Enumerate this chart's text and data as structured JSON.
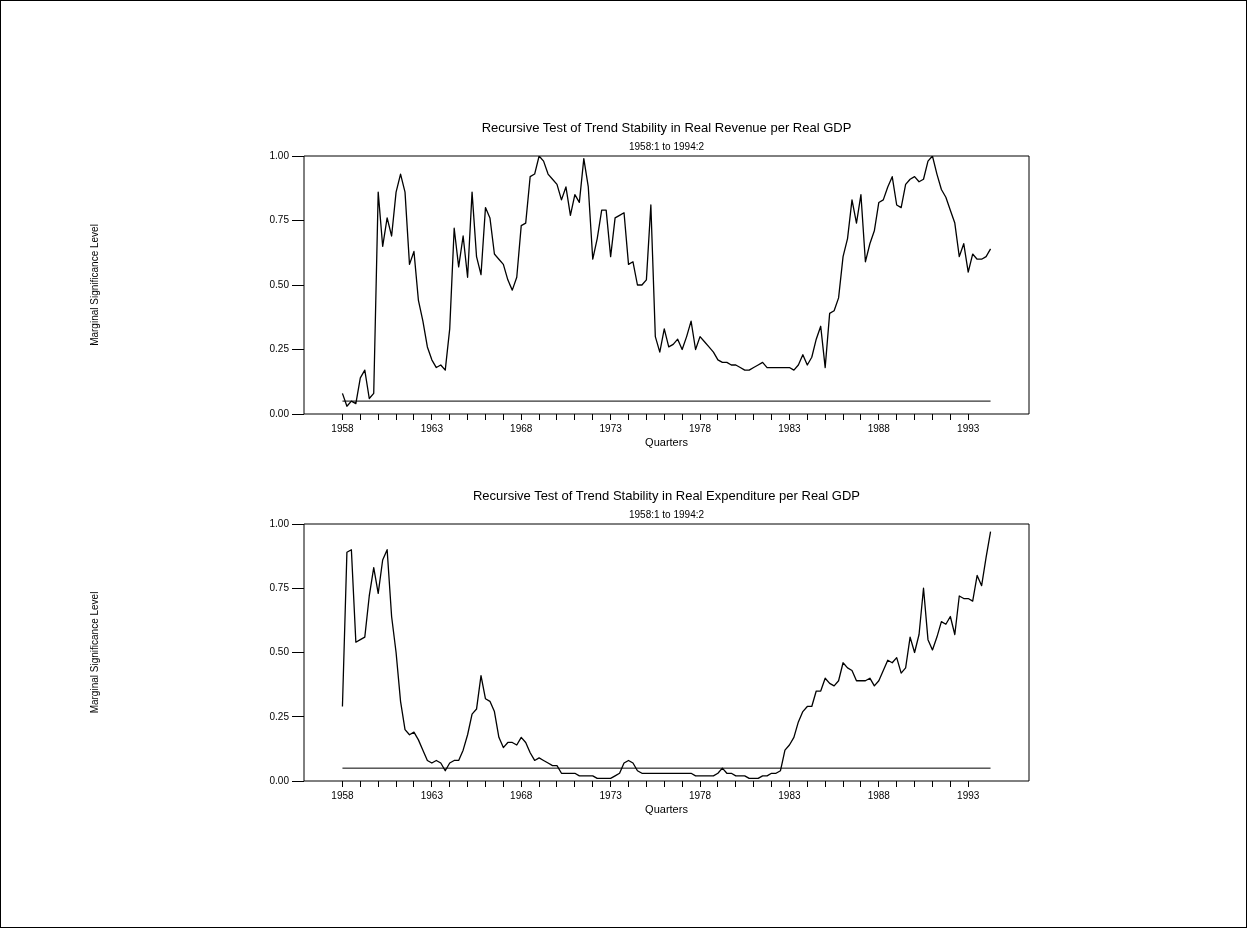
{
  "chart_data": [
    {
      "type": "line",
      "title": "Recursive Test of Trend Stability in Real Revenue per Real GDP",
      "subtitle": "1958:1 to 1994:2",
      "xlabel": "Quarters",
      "ylabel": "Marginal Significance Level",
      "color": "#000000",
      "marker": "none",
      "line_style": "solid",
      "grid": false,
      "x": [
        1958,
        1958.25,
        1958.5,
        1958.75,
        1959,
        1959.25,
        1959.5,
        1959.75,
        1960,
        1960.25,
        1960.5,
        1960.75,
        1961,
        1961.25,
        1961.5,
        1961.75,
        1962,
        1962.25,
        1962.5,
        1962.75,
        1963,
        1963.25,
        1963.5,
        1963.75,
        1964,
        1964.25,
        1964.5,
        1964.75,
        1965,
        1965.25,
        1965.5,
        1965.75,
        1966,
        1966.25,
        1966.5,
        1966.75,
        1967,
        1967.25,
        1967.5,
        1967.75,
        1968,
        1968.25,
        1968.5,
        1968.75,
        1969,
        1969.25,
        1969.5,
        1969.75,
        1970,
        1970.25,
        1970.5,
        1970.75,
        1971,
        1971.25,
        1971.5,
        1971.75,
        1972,
        1972.25,
        1972.5,
        1972.75,
        1973,
        1973.25,
        1973.5,
        1973.75,
        1974,
        1974.25,
        1974.5,
        1974.75,
        1975,
        1975.25,
        1975.5,
        1975.75,
        1976,
        1976.25,
        1976.5,
        1976.75,
        1977,
        1977.25,
        1977.5,
        1977.75,
        1978,
        1978.25,
        1978.5,
        1978.75,
        1979,
        1979.25,
        1979.5,
        1979.75,
        1980,
        1980.25,
        1980.5,
        1980.75,
        1981,
        1981.25,
        1981.5,
        1981.75,
        1982,
        1982.25,
        1982.5,
        1982.75,
        1983,
        1983.25,
        1983.5,
        1983.75,
        1984,
        1984.25,
        1984.5,
        1984.75,
        1985,
        1985.25,
        1985.5,
        1985.75,
        1986,
        1986.25,
        1986.5,
        1986.75,
        1987,
        1987.25,
        1987.5,
        1987.75,
        1988,
        1988.25,
        1988.5,
        1988.75,
        1989,
        1989.25,
        1989.5,
        1989.75,
        1990,
        1990.25,
        1990.5,
        1990.75,
        1991,
        1991.25,
        1991.5,
        1991.75,
        1992,
        1992.25,
        1992.5,
        1992.75,
        1993,
        1993.25,
        1993.5,
        1993.75,
        1994,
        1994.25
      ],
      "values": [
        0.08,
        0.03,
        0.05,
        0.04,
        0.14,
        0.17,
        0.06,
        0.08,
        0.86,
        0.65,
        0.76,
        0.69,
        0.86,
        0.93,
        0.86,
        0.58,
        0.63,
        0.44,
        0.36,
        0.26,
        0.21,
        0.18,
        0.19,
        0.17,
        0.33,
        0.72,
        0.57,
        0.69,
        0.53,
        0.86,
        0.61,
        0.54,
        0.8,
        0.76,
        0.62,
        0.6,
        0.58,
        0.52,
        0.48,
        0.53,
        0.73,
        0.74,
        0.92,
        0.93,
        1.0,
        0.98,
        0.93,
        0.91,
        0.89,
        0.83,
        0.88,
        0.77,
        0.85,
        0.82,
        0.99,
        0.88,
        0.6,
        0.68,
        0.79,
        0.79,
        0.61,
        0.76,
        0.77,
        0.78,
        0.58,
        0.59,
        0.5,
        0.5,
        0.52,
        0.81,
        0.3,
        0.24,
        0.33,
        0.26,
        0.27,
        0.29,
        0.25,
        0.3,
        0.36,
        0.25,
        0.3,
        0.28,
        0.26,
        0.24,
        0.21,
        0.2,
        0.2,
        0.19,
        0.19,
        0.18,
        0.17,
        0.17,
        0.18,
        0.19,
        0.2,
        0.18,
        0.18,
        0.18,
        0.18,
        0.18,
        0.18,
        0.17,
        0.19,
        0.23,
        0.19,
        0.22,
        0.29,
        0.34,
        0.18,
        0.39,
        0.4,
        0.45,
        0.61,
        0.68,
        0.83,
        0.74,
        0.85,
        0.59,
        0.66,
        0.71,
        0.82,
        0.83,
        0.88,
        0.92,
        0.81,
        0.8,
        0.89,
        0.91,
        0.92,
        0.9,
        0.91,
        0.98,
        1.0,
        0.93,
        0.87,
        0.84,
        0.79,
        0.74,
        0.61,
        0.66,
        0.55,
        0.62,
        0.6,
        0.6,
        0.61,
        0.64
      ],
      "xlim": [
        1955.85,
        1996.4
      ],
      "xticks": [
        {
          "value": 1958,
          "label": "1958"
        },
        {
          "value": 1959,
          "label": null
        },
        {
          "value": 1960,
          "label": null
        },
        {
          "value": 1961,
          "label": null
        },
        {
          "value": 1962,
          "label": null
        },
        {
          "value": 1963,
          "label": "1963"
        },
        {
          "value": 1964,
          "label": null
        },
        {
          "value": 1965,
          "label": null
        },
        {
          "value": 1966,
          "label": null
        },
        {
          "value": 1967,
          "label": null
        },
        {
          "value": 1968,
          "label": "1968"
        },
        {
          "value": 1969,
          "label": null
        },
        {
          "value": 1970,
          "label": null
        },
        {
          "value": 1971,
          "label": null
        },
        {
          "value": 1972,
          "label": null
        },
        {
          "value": 1973,
          "label": "1973"
        },
        {
          "value": 1974,
          "label": null
        },
        {
          "value": 1975,
          "label": null
        },
        {
          "value": 1976,
          "label": null
        },
        {
          "value": 1977,
          "label": null
        },
        {
          "value": 1978,
          "label": "1978"
        },
        {
          "value": 1979,
          "label": null
        },
        {
          "value": 1980,
          "label": null
        },
        {
          "value": 1981,
          "label": null
        },
        {
          "value": 1982,
          "label": null
        },
        {
          "value": 1983,
          "label": "1983"
        },
        {
          "value": 1984,
          "label": null
        },
        {
          "value": 1985,
          "label": null
        },
        {
          "value": 1986,
          "label": null
        },
        {
          "value": 1987,
          "label": null
        },
        {
          "value": 1988,
          "label": "1988"
        },
        {
          "value": 1989,
          "label": null
        },
        {
          "value": 1990,
          "label": null
        },
        {
          "value": 1991,
          "label": null
        },
        {
          "value": 1992,
          "label": null
        },
        {
          "value": 1993,
          "label": "1993"
        }
      ],
      "ylim": [
        0,
        1
      ],
      "yticks": [
        {
          "value": 0,
          "label": "0.00"
        },
        {
          "value": 0.25,
          "label": "0.25"
        },
        {
          "value": 0.5,
          "label": "0.50"
        },
        {
          "value": 0.75,
          "label": "0.75"
        },
        {
          "value": 1,
          "label": "1.00"
        }
      ],
      "ref_lines": [
        {
          "axis": "y",
          "value": 0.05,
          "color": "#000000"
        }
      ]
    },
    {
      "type": "line",
      "title": "Recursive Test of Trend Stability in Real Expenditure per Real GDP",
      "subtitle": "1958:1 to 1994:2",
      "xlabel": "Quarters",
      "ylabel": "Marginal Significance Level",
      "color": "#000000",
      "marker": "none",
      "line_style": "solid",
      "grid": false,
      "x": [
        1958,
        1958.25,
        1958.5,
        1958.75,
        1959,
        1959.25,
        1959.5,
        1959.75,
        1960,
        1960.25,
        1960.5,
        1960.75,
        1961,
        1961.25,
        1961.5,
        1961.75,
        1962,
        1962.25,
        1962.5,
        1962.75,
        1963,
        1963.25,
        1963.5,
        1963.75,
        1964,
        1964.25,
        1964.5,
        1964.75,
        1965,
        1965.25,
        1965.5,
        1965.75,
        1966,
        1966.25,
        1966.5,
        1966.75,
        1967,
        1967.25,
        1967.5,
        1967.75,
        1968,
        1968.25,
        1968.5,
        1968.75,
        1969,
        1969.25,
        1969.5,
        1969.75,
        1970,
        1970.25,
        1970.5,
        1970.75,
        1971,
        1971.25,
        1971.5,
        1971.75,
        1972,
        1972.25,
        1972.5,
        1972.75,
        1973,
        1973.25,
        1973.5,
        1973.75,
        1974,
        1974.25,
        1974.5,
        1974.75,
        1975,
        1975.25,
        1975.5,
        1975.75,
        1976,
        1976.25,
        1976.5,
        1976.75,
        1977,
        1977.25,
        1977.5,
        1977.75,
        1978,
        1978.25,
        1978.5,
        1978.75,
        1979,
        1979.25,
        1979.5,
        1979.75,
        1980,
        1980.25,
        1980.5,
        1980.75,
        1981,
        1981.25,
        1981.5,
        1981.75,
        1982,
        1982.25,
        1982.5,
        1982.75,
        1983,
        1983.25,
        1983.5,
        1983.75,
        1984,
        1984.25,
        1984.5,
        1984.75,
        1985,
        1985.25,
        1985.5,
        1985.75,
        1986,
        1986.25,
        1986.5,
        1986.75,
        1987,
        1987.25,
        1987.5,
        1987.75,
        1988,
        1988.25,
        1988.5,
        1988.75,
        1989,
        1989.25,
        1989.5,
        1989.75,
        1990,
        1990.25,
        1990.5,
        1990.75,
        1991,
        1991.25,
        1991.5,
        1991.75,
        1992,
        1992.25,
        1992.5,
        1992.75,
        1993,
        1993.25,
        1993.5,
        1993.75,
        1994,
        1994.25
      ],
      "values": [
        0.29,
        0.89,
        0.9,
        0.54,
        0.55,
        0.56,
        0.72,
        0.83,
        0.73,
        0.86,
        0.9,
        0.64,
        0.5,
        0.31,
        0.2,
        0.18,
        0.19,
        0.16,
        0.12,
        0.08,
        0.07,
        0.08,
        0.07,
        0.04,
        0.07,
        0.08,
        0.08,
        0.12,
        0.18,
        0.26,
        0.28,
        0.41,
        0.32,
        0.31,
        0.27,
        0.17,
        0.13,
        0.15,
        0.15,
        0.14,
        0.17,
        0.15,
        0.11,
        0.08,
        0.09,
        0.08,
        0.07,
        0.06,
        0.06,
        0.03,
        0.03,
        0.03,
        0.03,
        0.02,
        0.02,
        0.02,
        0.02,
        0.01,
        0.01,
        0.01,
        0.01,
        0.02,
        0.03,
        0.07,
        0.08,
        0.07,
        0.04,
        0.03,
        0.03,
        0.03,
        0.03,
        0.03,
        0.03,
        0.03,
        0.03,
        0.03,
        0.03,
        0.03,
        0.03,
        0.02,
        0.02,
        0.02,
        0.02,
        0.02,
        0.03,
        0.05,
        0.03,
        0.03,
        0.02,
        0.02,
        0.02,
        0.01,
        0.01,
        0.01,
        0.02,
        0.02,
        0.03,
        0.03,
        0.04,
        0.12,
        0.14,
        0.17,
        0.23,
        0.27,
        0.29,
        0.29,
        0.35,
        0.35,
        0.4,
        0.38,
        0.37,
        0.39,
        0.46,
        0.44,
        0.43,
        0.39,
        0.39,
        0.39,
        0.4,
        0.37,
        0.39,
        0.43,
        0.47,
        0.46,
        0.48,
        0.42,
        0.44,
        0.56,
        0.5,
        0.57,
        0.75,
        0.55,
        0.51,
        0.56,
        0.62,
        0.61,
        0.64,
        0.57,
        0.72,
        0.71,
        0.71,
        0.7,
        0.8,
        0.76,
        0.87,
        0.97
      ],
      "xlim": [
        1955.85,
        1996.4
      ],
      "xticks": [
        {
          "value": 1958,
          "label": "1958"
        },
        {
          "value": 1959,
          "label": null
        },
        {
          "value": 1960,
          "label": null
        },
        {
          "value": 1961,
          "label": null
        },
        {
          "value": 1962,
          "label": null
        },
        {
          "value": 1963,
          "label": "1963"
        },
        {
          "value": 1964,
          "label": null
        },
        {
          "value": 1965,
          "label": null
        },
        {
          "value": 1966,
          "label": null
        },
        {
          "value": 1967,
          "label": null
        },
        {
          "value": 1968,
          "label": "1968"
        },
        {
          "value": 1969,
          "label": null
        },
        {
          "value": 1970,
          "label": null
        },
        {
          "value": 1971,
          "label": null
        },
        {
          "value": 1972,
          "label": null
        },
        {
          "value": 1973,
          "label": "1973"
        },
        {
          "value": 1974,
          "label": null
        },
        {
          "value": 1975,
          "label": null
        },
        {
          "value": 1976,
          "label": null
        },
        {
          "value": 1977,
          "label": null
        },
        {
          "value": 1978,
          "label": "1978"
        },
        {
          "value": 1979,
          "label": null
        },
        {
          "value": 1980,
          "label": null
        },
        {
          "value": 1981,
          "label": null
        },
        {
          "value": 1982,
          "label": null
        },
        {
          "value": 1983,
          "label": "1983"
        },
        {
          "value": 1984,
          "label": null
        },
        {
          "value": 1985,
          "label": null
        },
        {
          "value": 1986,
          "label": null
        },
        {
          "value": 1987,
          "label": null
        },
        {
          "value": 1988,
          "label": "1988"
        },
        {
          "value": 1989,
          "label": null
        },
        {
          "value": 1990,
          "label": null
        },
        {
          "value": 1991,
          "label": null
        },
        {
          "value": 1992,
          "label": null
        },
        {
          "value": 1993,
          "label": "1993"
        }
      ],
      "ylim": [
        0,
        1
      ],
      "yticks": [
        {
          "value": 0,
          "label": "0.00"
        },
        {
          "value": 0.25,
          "label": "0.25"
        },
        {
          "value": 0.5,
          "label": "0.50"
        },
        {
          "value": 0.75,
          "label": "0.75"
        },
        {
          "value": 1,
          "label": "1.00"
        }
      ],
      "ref_lines": [
        {
          "axis": "y",
          "value": 0.05,
          "color": "#000000"
        }
      ]
    }
  ]
}
